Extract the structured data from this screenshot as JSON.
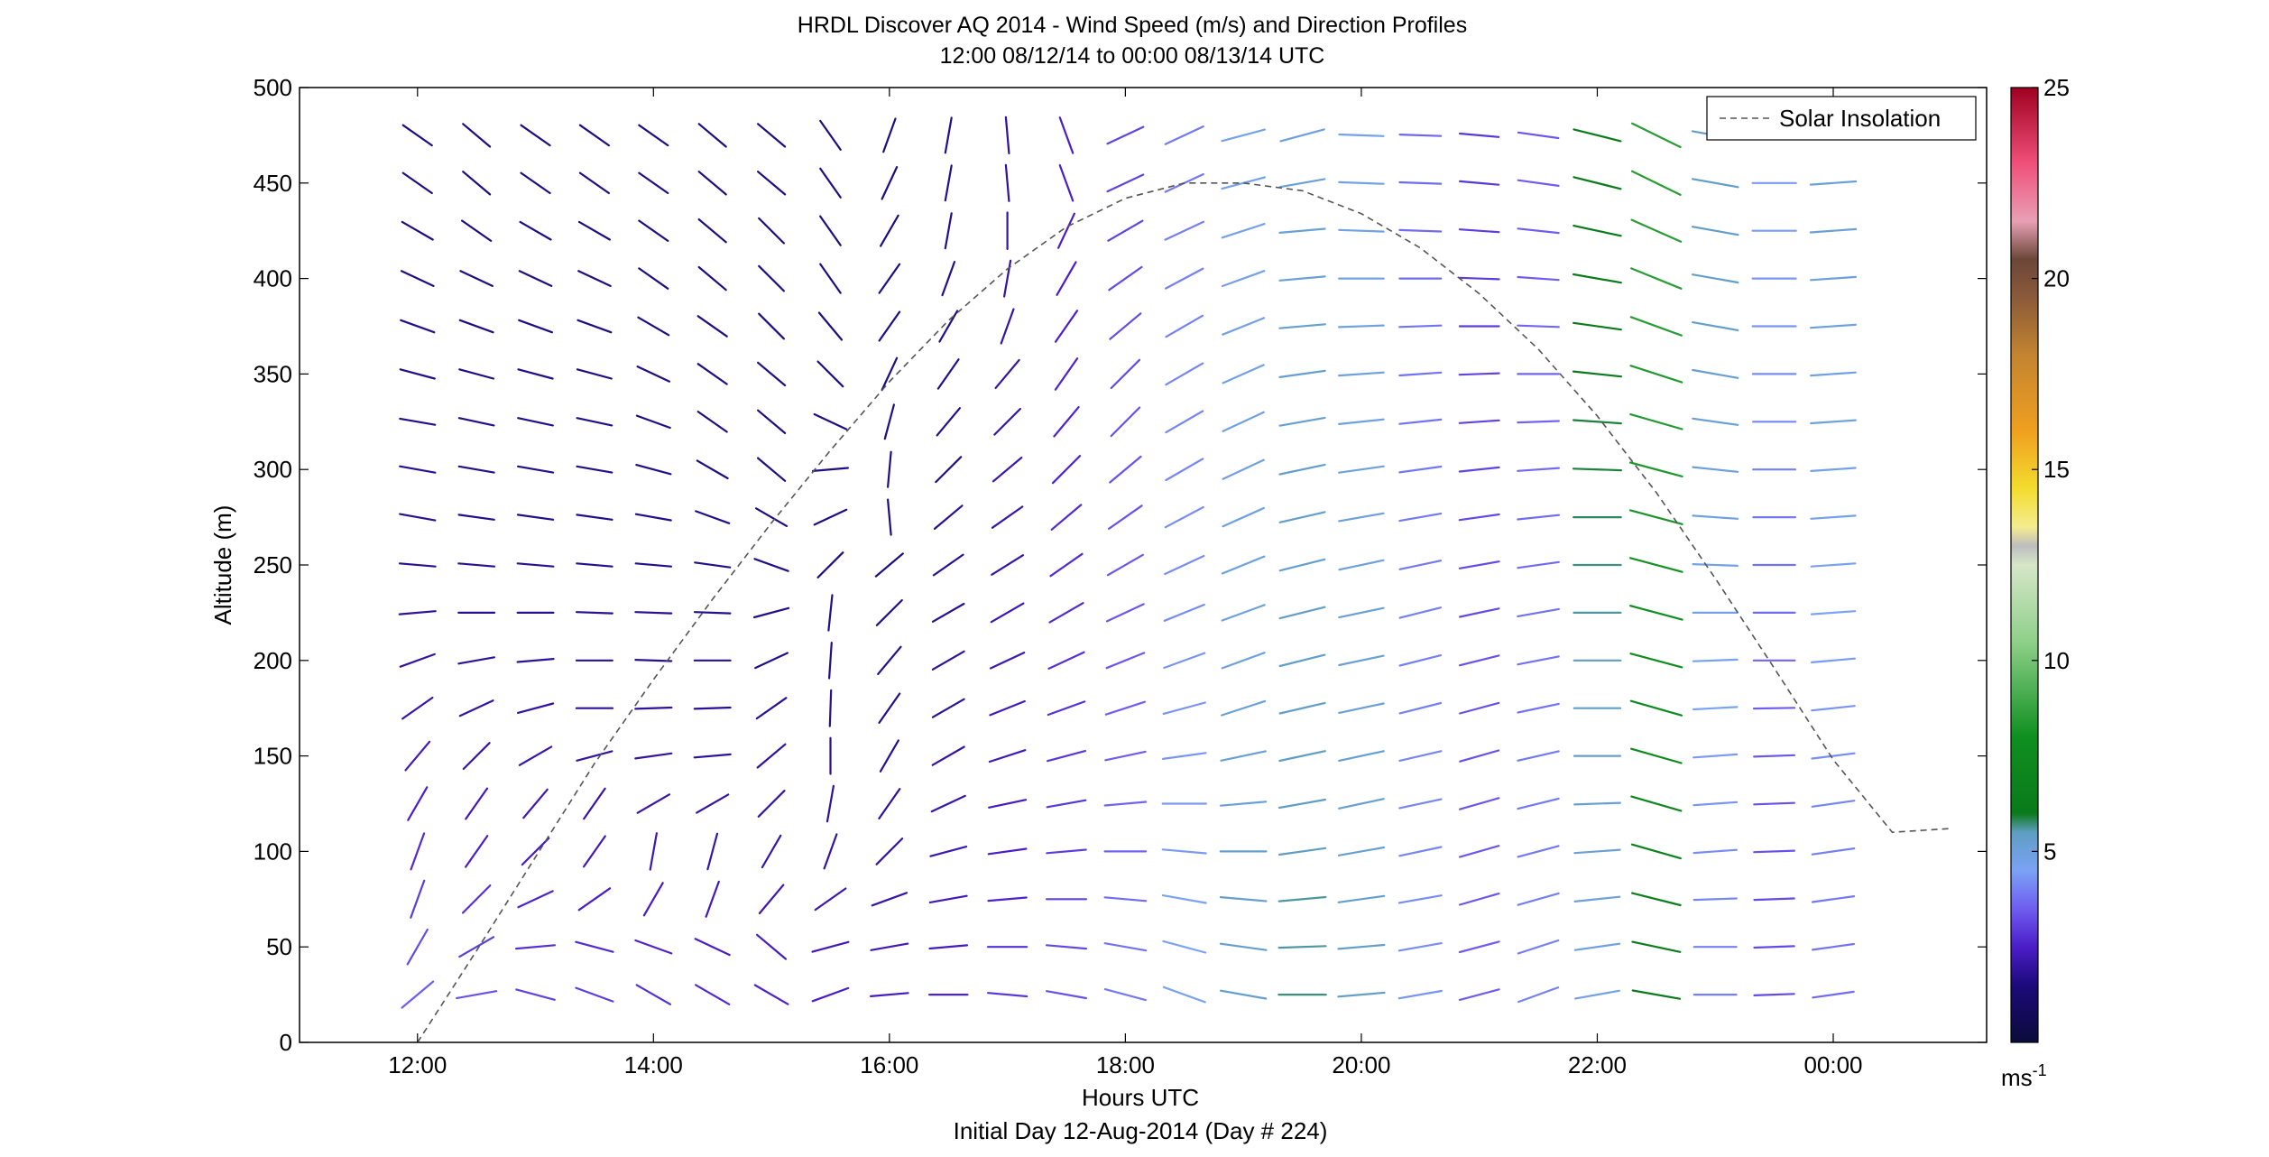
{
  "figure": {
    "title_line1": "HRDL Discover AQ 2014 - Wind Speed (m/s) and Direction Profiles",
    "title_line2": "12:00 08/12/14 to 00:00 08/13/14  UTC",
    "xlabel": "Hours UTC",
    "footer": "Initial Day 12-Aug-2014 (Day # 224)",
    "ylabel": "Altitude (m)",
    "legend_label": "Solar Insolation",
    "colorbar_unit": "ms",
    "colorbar_unit_exp": "-1"
  },
  "chart_data": {
    "type": "wind-barb-profile",
    "x_unit": "hours UTC since 12-Aug-2014 00:00",
    "xlim": [
      11,
      25.3
    ],
    "ylim": [
      0,
      500
    ],
    "x_ticks": [
      {
        "value": 12,
        "label": "12:00"
      },
      {
        "value": 14,
        "label": "14:00"
      },
      {
        "value": 16,
        "label": "16:00"
      },
      {
        "value": 18,
        "label": "18:00"
      },
      {
        "value": 20,
        "label": "20:00"
      },
      {
        "value": 22,
        "label": "22:00"
      },
      {
        "value": 24,
        "label": "00:00"
      }
    ],
    "y_ticks": [
      0,
      50,
      100,
      150,
      200,
      250,
      300,
      350,
      400,
      450,
      500
    ],
    "profile_times": [
      12.0,
      12.5,
      13.0,
      13.5,
      14.0,
      14.5,
      15.0,
      15.5,
      16.0,
      16.5,
      17.0,
      17.5,
      18.0,
      18.5,
      19.0,
      19.5,
      20.0,
      20.5,
      21.0,
      21.5,
      22.0,
      22.5,
      23.0,
      23.5,
      24.0
    ],
    "altitudes": [
      25,
      50,
      75,
      100,
      125,
      150,
      175,
      200,
      225,
      250,
      275,
      300,
      325,
      350,
      375,
      400,
      425,
      450,
      475
    ],
    "speed_ms": [
      [
        3.5,
        3.2,
        3.0,
        2.7,
        2.5,
        2.3,
        2.1,
        2.0,
        1.9,
        1.8,
        1.8,
        1.8,
        1.7,
        1.7,
        1.7,
        1.6,
        1.6,
        1.6,
        1.6
      ],
      [
        3.3,
        3.0,
        2.8,
        2.5,
        2.3,
        2.1,
        2.0,
        1.9,
        1.8,
        1.8,
        1.7,
        1.7,
        1.7,
        1.6,
        1.6,
        1.6,
        1.6,
        1.6,
        1.6
      ],
      [
        3.1,
        2.8,
        2.6,
        2.4,
        2.2,
        2.1,
        2.0,
        1.9,
        1.8,
        1.8,
        1.7,
        1.7,
        1.7,
        1.7,
        1.6,
        1.6,
        1.6,
        1.6,
        1.6
      ],
      [
        3.0,
        2.7,
        2.5,
        2.3,
        2.1,
        2.0,
        1.9,
        1.8,
        1.8,
        1.7,
        1.7,
        1.7,
        1.7,
        1.6,
        1.6,
        1.6,
        1.6,
        1.6,
        1.6
      ],
      [
        2.8,
        2.6,
        2.4,
        2.2,
        2.1,
        2.0,
        1.9,
        1.8,
        1.8,
        1.7,
        1.7,
        1.7,
        1.6,
        1.6,
        1.6,
        1.6,
        1.6,
        1.6,
        1.6
      ],
      [
        2.7,
        2.5,
        2.3,
        2.1,
        2.0,
        1.9,
        1.8,
        1.8,
        1.7,
        1.7,
        1.7,
        1.6,
        1.6,
        1.6,
        1.6,
        1.6,
        1.6,
        1.6,
        1.6
      ],
      [
        2.6,
        2.4,
        2.2,
        2.1,
        2.0,
        1.9,
        1.8,
        1.7,
        1.7,
        1.7,
        1.6,
        1.6,
        1.6,
        1.6,
        1.6,
        1.6,
        1.6,
        1.6,
        1.6
      ],
      [
        2.5,
        2.3,
        2.2,
        2.0,
        1.9,
        1.8,
        1.8,
        1.7,
        1.7,
        1.6,
        1.6,
        1.6,
        1.6,
        1.6,
        1.6,
        1.6,
        1.6,
        1.6,
        1.6
      ],
      [
        2.4,
        2.3,
        2.1,
        2.0,
        1.9,
        1.8,
        1.7,
        1.7,
        1.7,
        1.6,
        1.6,
        1.6,
        1.6,
        1.6,
        1.6,
        1.6,
        1.6,
        1.6,
        1.6
      ],
      [
        2.6,
        2.4,
        2.3,
        2.2,
        2.1,
        2.0,
        1.9,
        1.9,
        1.8,
        1.8,
        1.8,
        1.7,
        1.7,
        1.7,
        1.7,
        1.7,
        1.7,
        1.7,
        1.7
      ],
      [
        2.9,
        2.8,
        2.6,
        2.5,
        2.4,
        2.3,
        2.3,
        2.2,
        2.2,
        2.1,
        2.1,
        2.1,
        2.0,
        2.0,
        2.0,
        2.0,
        2.0,
        1.9,
        1.9
      ],
      [
        3.3,
        3.2,
        3.1,
        3.0,
        2.9,
        2.9,
        2.8,
        2.8,
        2.7,
        2.7,
        2.7,
        2.6,
        2.6,
        2.6,
        2.5,
        2.5,
        2.5,
        2.5,
        2.5
      ],
      [
        3.9,
        3.8,
        3.7,
        3.6,
        3.6,
        3.5,
        3.5,
        3.4,
        3.4,
        3.4,
        3.3,
        3.3,
        3.3,
        3.2,
        3.2,
        3.2,
        3.1,
        3.1,
        3.1
      ],
      [
        4.6,
        4.5,
        4.5,
        4.4,
        4.4,
        4.3,
        4.3,
        4.3,
        4.2,
        4.2,
        4.2,
        4.1,
        4.1,
        4.1,
        4.0,
        4.0,
        4.0,
        3.9,
        3.9
      ],
      [
        5.3,
        5.3,
        5.2,
        5.2,
        5.1,
        5.1,
        5.1,
        5.0,
        5.0,
        5.0,
        4.9,
        4.9,
        4.9,
        4.8,
        4.8,
        4.8,
        4.7,
        4.7,
        4.7
      ],
      [
        5.7,
        5.6,
        5.6,
        5.5,
        5.5,
        5.5,
        5.4,
        5.4,
        5.4,
        5.3,
        5.3,
        5.3,
        5.2,
        5.2,
        5.2,
        5.1,
        5.1,
        5.1,
        5.0
      ],
      [
        5.4,
        5.3,
        5.3,
        5.2,
        5.2,
        5.2,
        5.1,
        5.1,
        5.1,
        5.0,
        5.0,
        5.0,
        4.9,
        4.9,
        4.9,
        4.8,
        4.8,
        4.8,
        4.7
      ],
      [
        4.3,
        4.2,
        4.2,
        4.1,
        4.1,
        4.1,
        4.0,
        4.0,
        4.0,
        3.9,
        3.9,
        3.9,
        3.8,
        3.8,
        3.8,
        3.7,
        3.7,
        3.7,
        3.6
      ],
      [
        3.5,
        3.5,
        3.4,
        3.4,
        3.4,
        3.3,
        3.3,
        3.3,
        3.2,
        3.2,
        3.2,
        3.1,
        3.1,
        3.1,
        3.0,
        3.0,
        3.0,
        2.9,
        2.9
      ],
      [
        4.0,
        4.0,
        4.0,
        3.9,
        3.9,
        3.9,
        3.8,
        3.8,
        3.8,
        3.7,
        3.7,
        3.7,
        3.6,
        3.6,
        3.6,
        3.5,
        3.5,
        3.5,
        3.4
      ],
      [
        4.8,
        4.9,
        5.0,
        5.1,
        5.2,
        5.3,
        5.4,
        5.5,
        5.6,
        5.7,
        5.8,
        5.9,
        5.9,
        6.0,
        6.0,
        6.1,
        6.1,
        6.1,
        6.1
      ],
      [
        6.0,
        6.3,
        6.6,
        6.9,
        7.2,
        7.4,
        7.6,
        7.8,
        8.0,
        8.1,
        8.2,
        8.3,
        8.4,
        8.4,
        8.5,
        8.5,
        8.5,
        8.5,
        8.5
      ],
      [
        4.0,
        4.0,
        4.1,
        4.2,
        4.3,
        4.4,
        4.5,
        4.6,
        4.7,
        4.8,
        4.9,
        5.0,
        5.1,
        5.2,
        5.3,
        5.3,
        5.4,
        5.4,
        5.4
      ],
      [
        3.2,
        3.2,
        3.2,
        3.3,
        3.3,
        3.4,
        3.5,
        3.6,
        3.7,
        3.8,
        3.9,
        4.0,
        4.1,
        4.2,
        4.3,
        4.3,
        4.4,
        4.4,
        4.4
      ],
      [
        3.7,
        3.8,
        3.9,
        4.0,
        4.1,
        4.2,
        4.3,
        4.4,
        4.5,
        4.6,
        4.7,
        4.8,
        4.9,
        4.9,
        5.0,
        5.0,
        5.1,
        5.1,
        5.1
      ]
    ],
    "direction_deg": [
      [
        230,
        210,
        200,
        200,
        210,
        220,
        235,
        250,
        265,
        275,
        280,
        280,
        280,
        285,
        290,
        295,
        300,
        305,
        305
      ],
      [
        260,
        240,
        225,
        215,
        215,
        225,
        245,
        260,
        270,
        275,
        278,
        280,
        282,
        285,
        290,
        295,
        305,
        310,
        310
      ],
      [
        285,
        265,
        245,
        225,
        220,
        240,
        255,
        265,
        270,
        275,
        278,
        280,
        282,
        285,
        290,
        295,
        300,
        305,
        305
      ],
      [
        290,
        285,
        235,
        215,
        215,
        255,
        270,
        270,
        272,
        275,
        278,
        280,
        282,
        285,
        290,
        295,
        300,
        305,
        305
      ],
      [
        300,
        290,
        210,
        190,
        240,
        262,
        268,
        272,
        272,
        275,
        280,
        285,
        290,
        295,
        300,
        305,
        305,
        305,
        305
      ],
      [
        300,
        295,
        200,
        195,
        240,
        265,
        268,
        270,
        272,
        278,
        290,
        300,
        305,
        305,
        305,
        310,
        310,
        310,
        310
      ],
      [
        300,
        310,
        220,
        210,
        225,
        230,
        235,
        245,
        255,
        290,
        300,
        310,
        310,
        310,
        315,
        315,
        315,
        310,
        310
      ],
      [
        250,
        255,
        235,
        200,
        190,
        180,
        182,
        184,
        186,
        225,
        245,
        265,
        295,
        315,
        320,
        325,
        325,
        325,
        325
      ],
      [
        265,
        260,
        250,
        225,
        215,
        210,
        215,
        220,
        225,
        230,
        175,
        185,
        195,
        205,
        215,
        215,
        210,
        205,
        200
      ],
      [
        270,
        265,
        260,
        255,
        245,
        240,
        240,
        240,
        240,
        235,
        230,
        225,
        220,
        215,
        210,
        200,
        190,
        190,
        190
      ],
      [
        275,
        270,
        265,
        262,
        258,
        252,
        248,
        245,
        240,
        238,
        235,
        230,
        225,
        220,
        200,
        190,
        180,
        175,
        175
      ],
      [
        280,
        275,
        270,
        265,
        260,
        255,
        250,
        245,
        240,
        235,
        230,
        225,
        220,
        215,
        215,
        210,
        205,
        160,
        160
      ],
      [
        285,
        280,
        275,
        270,
        265,
        258,
        252,
        248,
        245,
        240,
        235,
        230,
        225,
        225,
        230,
        235,
        240,
        245,
        245
      ],
      [
        290,
        285,
        280,
        275,
        270,
        262,
        255,
        250,
        248,
        245,
        242,
        240,
        240,
        240,
        240,
        242,
        245,
        245,
        245
      ],
      [
        280,
        278,
        275,
        270,
        265,
        258,
        252,
        250,
        250,
        248,
        246,
        245,
        245,
        246,
        248,
        250,
        252,
        255,
        255
      ],
      [
        270,
        268,
        265,
        262,
        260,
        258,
        257,
        256,
        256,
        256,
        257,
        258,
        260,
        262,
        265,
        265,
        265,
        260,
        255
      ],
      [
        265,
        265,
        262,
        260,
        258,
        258,
        258,
        258,
        258,
        258,
        260,
        262,
        264,
        266,
        268,
        270,
        272,
        272,
        272
      ],
      [
        260,
        260,
        260,
        258,
        258,
        257,
        256,
        256,
        256,
        258,
        260,
        262,
        264,
        266,
        268,
        270,
        272,
        272,
        272
      ],
      [
        255,
        255,
        254,
        254,
        254,
        254,
        255,
        256,
        258,
        260,
        262,
        264,
        266,
        268,
        270,
        272,
        274,
        275,
        275
      ],
      [
        250,
        252,
        254,
        255,
        256,
        257,
        258,
        259,
        260,
        262,
        264,
        266,
        268,
        270,
        272,
        274,
        276,
        278,
        278
      ],
      [
        260,
        262,
        264,
        266,
        268,
        270,
        270,
        270,
        270,
        270,
        270,
        272,
        274,
        276,
        278,
        280,
        282,
        284,
        284
      ],
      [
        280,
        282,
        284,
        286,
        286,
        286,
        286,
        285,
        285,
        285,
        285,
        285,
        286,
        288,
        290,
        292,
        294,
        296,
        296
      ],
      [
        270,
        270,
        268,
        266,
        266,
        266,
        267,
        268,
        270,
        272,
        274,
        276,
        278,
        280,
        280,
        280,
        280,
        280,
        280
      ],
      [
        268,
        268,
        268,
        268,
        268,
        268,
        269,
        270,
        270,
        270,
        270,
        270,
        270,
        270,
        270,
        270,
        270,
        270,
        270
      ],
      [
        262,
        262,
        262,
        262,
        262,
        263,
        264,
        265,
        266,
        266,
        266,
        266,
        266,
        266,
        266,
        266,
        266,
        266,
        266
      ]
    ],
    "solar_insolation_curve": {
      "style": "dashed",
      "color": "#555555",
      "hours": [
        12.0,
        12.5,
        13.0,
        13.5,
        14.0,
        14.5,
        15.0,
        15.5,
        16.0,
        16.5,
        17.0,
        17.5,
        18.0,
        18.5,
        19.0,
        19.5,
        20.0,
        20.5,
        21.0,
        21.5,
        22.0,
        22.5,
        23.0,
        23.5,
        24.0,
        24.5,
        25.0
      ],
      "altitude_m": [
        0,
        48,
        97,
        146,
        190,
        232,
        272,
        310,
        346,
        378,
        405,
        427,
        442,
        450,
        450,
        446,
        434,
        416,
        392,
        363,
        328,
        288,
        243,
        196,
        148,
        110,
        112
      ]
    },
    "colorbar": {
      "range": [
        0,
        25
      ],
      "ticks": [
        5,
        10,
        15,
        20,
        25
      ],
      "stops": [
        {
          "value": 0,
          "color": "#0b0b3b"
        },
        {
          "value": 1.5,
          "color": "#1c0a7a"
        },
        {
          "value": 2.5,
          "color": "#4b1dc8"
        },
        {
          "value": 3.5,
          "color": "#6f5df0"
        },
        {
          "value": 4.5,
          "color": "#7aa2f5"
        },
        {
          "value": 5.5,
          "color": "#5f9ec2"
        },
        {
          "value": 6.0,
          "color": "#0a7a1a"
        },
        {
          "value": 8.0,
          "color": "#0f8f20"
        },
        {
          "value": 10.5,
          "color": "#8fd08a"
        },
        {
          "value": 12.5,
          "color": "#d6e6c8"
        },
        {
          "value": 13.0,
          "color": "#bdbdbd"
        },
        {
          "value": 13.5,
          "color": "#f5ec8f"
        },
        {
          "value": 14.5,
          "color": "#f3dc2d"
        },
        {
          "value": 16.0,
          "color": "#f0a020"
        },
        {
          "value": 18.0,
          "color": "#c38430"
        },
        {
          "value": 19.5,
          "color": "#8b5a3a"
        },
        {
          "value": 20.5,
          "color": "#6b4638"
        },
        {
          "value": 21.5,
          "color": "#e8a0b5"
        },
        {
          "value": 23.0,
          "color": "#f0507a"
        },
        {
          "value": 25.0,
          "color": "#a00020"
        }
      ]
    },
    "legend": {
      "entries": [
        "Solar Insolation"
      ],
      "location": "top-right"
    }
  }
}
